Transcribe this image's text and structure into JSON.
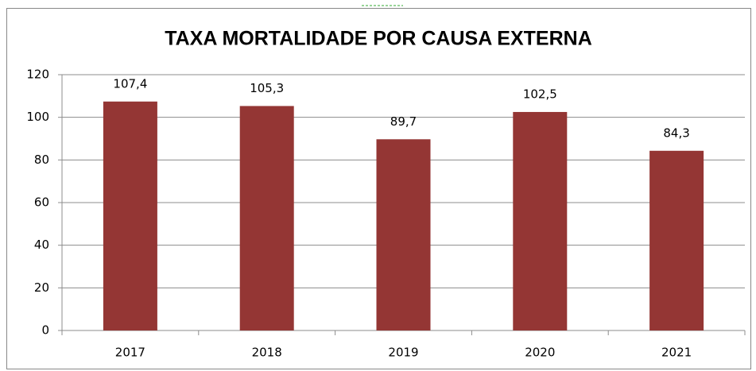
{
  "chart_data": {
    "type": "bar",
    "title": "TAXA MORTALIDADE POR CAUSA EXTERNA",
    "categories": [
      "2017",
      "2018",
      "2019",
      "2020",
      "2021"
    ],
    "values": [
      107.4,
      105.3,
      89.7,
      102.5,
      84.3
    ],
    "value_labels": [
      "107,4",
      "105,3",
      "89,7",
      "102,5",
      "84,3"
    ],
    "color": "#943634",
    "ylim": [
      0,
      120
    ],
    "yticks": [
      0,
      20,
      40,
      60,
      80,
      100,
      120
    ],
    "grid": true
  }
}
